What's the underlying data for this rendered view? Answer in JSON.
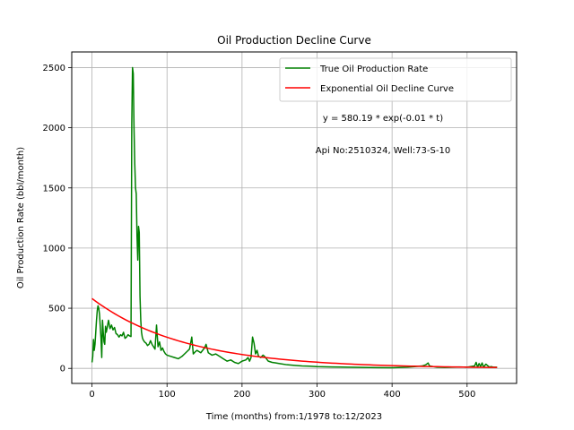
{
  "chart_data": {
    "type": "line",
    "title": "Oil Production Decline Curve",
    "xlabel": "Time (months) from:1/1978 to:12/2023",
    "ylabel": "Oil Production Rate (bbl/month)",
    "xlim": [
      -27,
      566
    ],
    "ylim": [
      -125,
      2630
    ],
    "xticks": [
      0,
      100,
      200,
      300,
      400,
      500
    ],
    "yticks": [
      0,
      500,
      1000,
      1500,
      2000,
      2500
    ],
    "grid": true,
    "legend_position": "top-right",
    "annotations": [
      {
        "text": "y = 580.19 * exp(-0.01 * t)"
      },
      {
        "text": "Api No:2510324, Well:73-S-10"
      }
    ],
    "series": [
      {
        "name": "True Oil Production Rate",
        "color": "#008000",
        "x": [
          0,
          1,
          2,
          3,
          4,
          5,
          6,
          7,
          8,
          9,
          10,
          11,
          12,
          13,
          14,
          15,
          16,
          17,
          18,
          19,
          20,
          22,
          24,
          26,
          28,
          30,
          32,
          34,
          36,
          38,
          40,
          42,
          44,
          46,
          48,
          50,
          52,
          53,
          54,
          55,
          56,
          57,
          58,
          59,
          60,
          61,
          62,
          63,
          64,
          65,
          66,
          67,
          68,
          70,
          72,
          74,
          76,
          78,
          80,
          82,
          84,
          86,
          88,
          90,
          92,
          94,
          96,
          98,
          100,
          105,
          110,
          115,
          120,
          125,
          130,
          133,
          135,
          138,
          140,
          145,
          150,
          152,
          155,
          160,
          165,
          170,
          175,
          180,
          185,
          190,
          195,
          200,
          205,
          208,
          210,
          212,
          214,
          216,
          218,
          220,
          222,
          225,
          228,
          230,
          235,
          240,
          245,
          250,
          260,
          270,
          280,
          290,
          300,
          320,
          340,
          360,
          380,
          400,
          420,
          430,
          440,
          445,
          448,
          450,
          455,
          460,
          470,
          480,
          490,
          500,
          510,
          512,
          514,
          516,
          518,
          520,
          522,
          525,
          528,
          530,
          532,
          535,
          540
        ],
        "values": [
          50,
          100,
          240,
          150,
          200,
          300,
          400,
          480,
          520,
          500,
          450,
          350,
          250,
          90,
          400,
          300,
          220,
          200,
          350,
          300,
          330,
          400,
          330,
          360,
          320,
          340,
          290,
          280,
          260,
          280,
          270,
          300,
          250,
          260,
          280,
          270,
          265,
          2030,
          2500,
          2450,
          2000,
          1700,
          1500,
          1450,
          1100,
          900,
          1180,
          1130,
          600,
          400,
          300,
          260,
          240,
          220,
          210,
          190,
          200,
          230,
          200,
          180,
          160,
          360,
          180,
          220,
          150,
          170,
          140,
          120,
          110,
          100,
          90,
          80,
          100,
          130,
          160,
          260,
          120,
          140,
          150,
          130,
          170,
          200,
          130,
          110,
          120,
          100,
          80,
          60,
          70,
          50,
          40,
          60,
          70,
          90,
          60,
          90,
          260,
          210,
          120,
          150,
          100,
          90,
          110,
          100,
          60,
          50,
          45,
          40,
          30,
          25,
          20,
          18,
          15,
          12,
          10,
          8,
          6,
          5,
          10,
          15,
          20,
          30,
          45,
          20,
          15,
          10,
          8,
          10,
          12,
          10,
          20,
          50,
          10,
          40,
          15,
          45,
          10,
          35,
          20,
          10,
          15,
          10,
          10
        ]
      },
      {
        "name": "Exponential Oil Decline Curve",
        "color": "#ff0000",
        "fit": {
          "a": 580.19,
          "b": 0.008074
        },
        "x_start": 0,
        "x_end": 540
      }
    ]
  }
}
